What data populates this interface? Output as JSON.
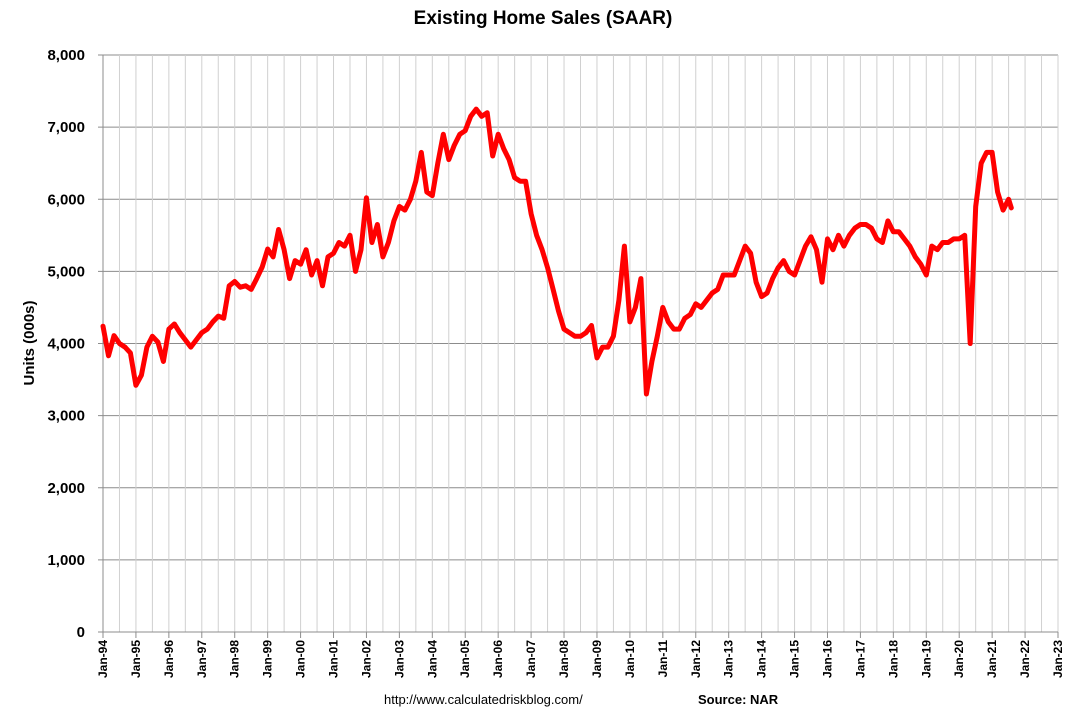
{
  "chart_data": {
    "type": "line",
    "title": "Existing Home Sales (SAAR)",
    "ylabel": "Units (000s)",
    "xlabel": "",
    "ylim": [
      0,
      8000
    ],
    "y_ticks": [
      0,
      1000,
      2000,
      3000,
      4000,
      5000,
      6000,
      7000,
      8000
    ],
    "y_tick_labels": [
      "0",
      "1,000",
      "2,000",
      "3,000",
      "4,000",
      "5,000",
      "6,000",
      "7,000",
      "8,000"
    ],
    "x_range": [
      "1994-01",
      "2023-01"
    ],
    "x_tick_labels": [
      "Jan-94",
      "Jan-95",
      "Jan-96",
      "Jan-97",
      "Jan-98",
      "Jan-99",
      "Jan-00",
      "Jan-01",
      "Jan-02",
      "Jan-03",
      "Jan-04",
      "Jan-05",
      "Jan-06",
      "Jan-07",
      "Jan-08",
      "Jan-09",
      "Jan-10",
      "Jan-11",
      "Jan-12",
      "Jan-13",
      "Jan-14",
      "Jan-15",
      "Jan-16",
      "Jan-17",
      "Jan-18",
      "Jan-19",
      "Jan-20",
      "Jan-21",
      "Jan-22",
      "Jan-23"
    ],
    "grid": "horizontal and vertical",
    "legend": "none",
    "series": [
      {
        "color": "#ff0000",
        "points": [
          [
            "1994-01",
            4240
          ],
          [
            "1994-03",
            3830
          ],
          [
            "1994-05",
            4110
          ],
          [
            "1994-07",
            4000
          ],
          [
            "1994-09",
            3950
          ],
          [
            "1994-11",
            3870
          ],
          [
            "1995-01",
            3420
          ],
          [
            "1995-03",
            3560
          ],
          [
            "1995-05",
            3950
          ],
          [
            "1995-07",
            4100
          ],
          [
            "1995-09",
            4020
          ],
          [
            "1995-11",
            3750
          ],
          [
            "1996-01",
            4200
          ],
          [
            "1996-03",
            4270
          ],
          [
            "1996-05",
            4150
          ],
          [
            "1996-07",
            4050
          ],
          [
            "1996-09",
            3950
          ],
          [
            "1996-11",
            4050
          ],
          [
            "1997-01",
            4150
          ],
          [
            "1997-03",
            4200
          ],
          [
            "1997-05",
            4300
          ],
          [
            "1997-07",
            4380
          ],
          [
            "1997-09",
            4350
          ],
          [
            "1997-11",
            4800
          ],
          [
            "1998-01",
            4860
          ],
          [
            "1998-03",
            4780
          ],
          [
            "1998-05",
            4800
          ],
          [
            "1998-07",
            4750
          ],
          [
            "1998-09",
            4900
          ],
          [
            "1998-11",
            5060
          ],
          [
            "1999-01",
            5310
          ],
          [
            "1999-03",
            5200
          ],
          [
            "1999-05",
            5580
          ],
          [
            "1999-07",
            5300
          ],
          [
            "1999-09",
            4900
          ],
          [
            "1999-11",
            5150
          ],
          [
            "2000-01",
            5100
          ],
          [
            "2000-03",
            5300
          ],
          [
            "2000-05",
            4950
          ],
          [
            "2000-07",
            5150
          ],
          [
            "2000-09",
            4800
          ],
          [
            "2000-11",
            5200
          ],
          [
            "2001-01",
            5250
          ],
          [
            "2001-03",
            5400
          ],
          [
            "2001-05",
            5350
          ],
          [
            "2001-07",
            5500
          ],
          [
            "2001-09",
            5000
          ],
          [
            "2001-11",
            5300
          ],
          [
            "2002-01",
            6020
          ],
          [
            "2002-03",
            5400
          ],
          [
            "2002-05",
            5650
          ],
          [
            "2002-07",
            5200
          ],
          [
            "2002-09",
            5400
          ],
          [
            "2002-11",
            5700
          ],
          [
            "2003-01",
            5900
          ],
          [
            "2003-03",
            5850
          ],
          [
            "2003-05",
            6000
          ],
          [
            "2003-07",
            6250
          ],
          [
            "2003-09",
            6650
          ],
          [
            "2003-11",
            6100
          ],
          [
            "2004-01",
            6050
          ],
          [
            "2004-03",
            6500
          ],
          [
            "2004-05",
            6900
          ],
          [
            "2004-07",
            6550
          ],
          [
            "2004-09",
            6750
          ],
          [
            "2004-11",
            6900
          ],
          [
            "2005-01",
            6950
          ],
          [
            "2005-03",
            7150
          ],
          [
            "2005-05",
            7250
          ],
          [
            "2005-07",
            7150
          ],
          [
            "2005-09",
            7200
          ],
          [
            "2005-11",
            6600
          ],
          [
            "2006-01",
            6900
          ],
          [
            "2006-03",
            6700
          ],
          [
            "2006-05",
            6550
          ],
          [
            "2006-07",
            6300
          ],
          [
            "2006-09",
            6250
          ],
          [
            "2006-11",
            6250
          ],
          [
            "2007-01",
            5800
          ],
          [
            "2007-03",
            5500
          ],
          [
            "2007-05",
            5300
          ],
          [
            "2007-07",
            5050
          ],
          [
            "2007-09",
            4750
          ],
          [
            "2007-11",
            4450
          ],
          [
            "2008-01",
            4200
          ],
          [
            "2008-03",
            4150
          ],
          [
            "2008-05",
            4100
          ],
          [
            "2008-07",
            4100
          ],
          [
            "2008-09",
            4150
          ],
          [
            "2008-11",
            4250
          ],
          [
            "2009-01",
            3800
          ],
          [
            "2009-03",
            3950
          ],
          [
            "2009-05",
            3950
          ],
          [
            "2009-07",
            4100
          ],
          [
            "2009-09",
            4600
          ],
          [
            "2009-11",
            5350
          ],
          [
            "2010-01",
            4300
          ],
          [
            "2010-03",
            4500
          ],
          [
            "2010-05",
            4900
          ],
          [
            "2010-07",
            3300
          ],
          [
            "2010-09",
            3750
          ],
          [
            "2010-11",
            4100
          ],
          [
            "2011-01",
            4500
          ],
          [
            "2011-03",
            4300
          ],
          [
            "2011-05",
            4200
          ],
          [
            "2011-07",
            4200
          ],
          [
            "2011-09",
            4350
          ],
          [
            "2011-11",
            4400
          ],
          [
            "2012-01",
            4550
          ],
          [
            "2012-03",
            4500
          ],
          [
            "2012-05",
            4600
          ],
          [
            "2012-07",
            4700
          ],
          [
            "2012-09",
            4750
          ],
          [
            "2012-11",
            4950
          ],
          [
            "2013-01",
            4950
          ],
          [
            "2013-03",
            4950
          ],
          [
            "2013-05",
            5150
          ],
          [
            "2013-07",
            5350
          ],
          [
            "2013-09",
            5250
          ],
          [
            "2013-11",
            4850
          ],
          [
            "2014-01",
            4650
          ],
          [
            "2014-03",
            4700
          ],
          [
            "2014-05",
            4900
          ],
          [
            "2014-07",
            5050
          ],
          [
            "2014-09",
            5150
          ],
          [
            "2014-11",
            5000
          ],
          [
            "2015-01",
            4950
          ],
          [
            "2015-03",
            5150
          ],
          [
            "2015-05",
            5350
          ],
          [
            "2015-07",
            5480
          ],
          [
            "2015-09",
            5300
          ],
          [
            "2015-11",
            4850
          ],
          [
            "2016-01",
            5450
          ],
          [
            "2016-03",
            5300
          ],
          [
            "2016-05",
            5500
          ],
          [
            "2016-07",
            5350
          ],
          [
            "2016-09",
            5500
          ],
          [
            "2016-11",
            5600
          ],
          [
            "2017-01",
            5650
          ],
          [
            "2017-03",
            5650
          ],
          [
            "2017-05",
            5600
          ],
          [
            "2017-07",
            5450
          ],
          [
            "2017-09",
            5400
          ],
          [
            "2017-11",
            5700
          ],
          [
            "2018-01",
            5550
          ],
          [
            "2018-03",
            5550
          ],
          [
            "2018-05",
            5450
          ],
          [
            "2018-07",
            5350
          ],
          [
            "2018-09",
            5200
          ],
          [
            "2018-11",
            5100
          ],
          [
            "2019-01",
            4950
          ],
          [
            "2019-03",
            5350
          ],
          [
            "2019-05",
            5300
          ],
          [
            "2019-07",
            5400
          ],
          [
            "2019-09",
            5400
          ],
          [
            "2019-11",
            5450
          ],
          [
            "2020-01",
            5450
          ],
          [
            "2020-03",
            5500
          ],
          [
            "2020-05",
            4000
          ],
          [
            "2020-07",
            5900
          ],
          [
            "2020-09",
            6500
          ],
          [
            "2020-11",
            6650
          ],
          [
            "2021-01",
            6650
          ],
          [
            "2021-03",
            6100
          ],
          [
            "2021-05",
            5850
          ],
          [
            "2021-07",
            6000
          ],
          [
            "2021-08",
            5880
          ]
        ]
      }
    ]
  },
  "footer": {
    "url": "http://www.calculatedriskblog.com/",
    "source": "Source: NAR"
  }
}
